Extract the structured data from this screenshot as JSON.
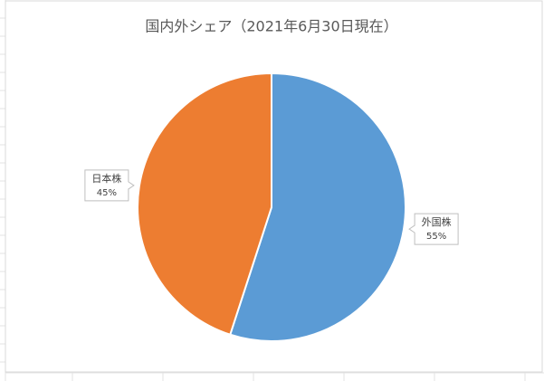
{
  "chart_data": {
    "type": "pie",
    "title": "国内外シェア（2021年6月30日現在）",
    "categories": [
      "外国株",
      "日本株"
    ],
    "values": [
      55,
      45
    ],
    "value_labels": [
      "55%",
      "45%"
    ],
    "colors": [
      "#5b9bd5",
      "#ed7d31"
    ]
  }
}
